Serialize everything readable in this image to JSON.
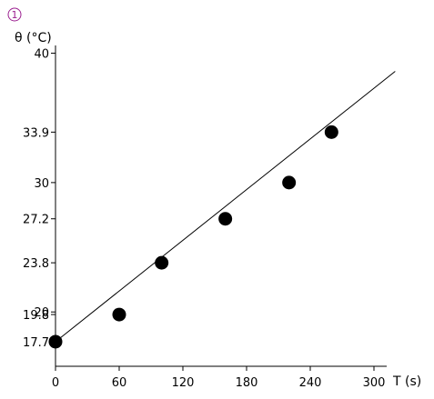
{
  "badge": {
    "text": "1",
    "color": "#9b1f8f"
  },
  "chart_data": {
    "type": "scatter",
    "title": "",
    "ylabel": "θ (°C)",
    "xlabel": "T (s)",
    "xlim": [
      0,
      360
    ],
    "ylim": [
      15.8,
      40.6
    ],
    "x_ticks": [
      0,
      60,
      120,
      180,
      240,
      300
    ],
    "y_ticks": [
      17.7,
      19.8,
      20,
      23.8,
      27.2,
      30,
      33.9,
      40
    ],
    "grid": false,
    "legend": "none",
    "series": [
      {
        "x": [
          0,
          60,
          100,
          160,
          220,
          260
        ],
        "y": [
          17.7,
          19.8,
          23.8,
          27.2,
          30,
          33.9
        ]
      }
    ],
    "fit_line": {
      "x": [
        0,
        320
      ],
      "y": [
        17.7,
        38.6
      ]
    },
    "colors": {
      "points": "#000000",
      "line": "#000000",
      "axes": "#000000"
    }
  }
}
